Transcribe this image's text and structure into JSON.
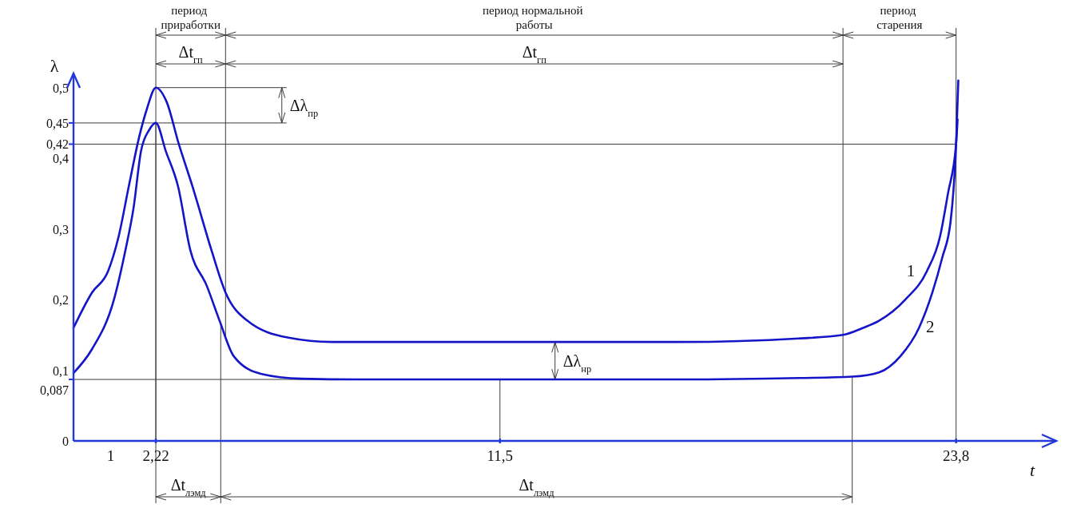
{
  "chart_data": {
    "type": "line",
    "xlabel": "t",
    "ylabel": "λ",
    "xlim": [
      0,
      26.5
    ],
    "xticks": [
      1,
      {
        "value": 2.22,
        "label": "2,22"
      },
      {
        "value": 11.5,
        "label": "11,5"
      },
      {
        "value": 23.8,
        "label": "23,8"
      }
    ],
    "ylim": [
      0,
      0.52
    ],
    "yticks": [
      0,
      {
        "value": 0.1,
        "label": "0,1"
      },
      {
        "value": 0.2,
        "label": "0,2"
      },
      {
        "value": 0.3,
        "label": "0,3"
      },
      {
        "value": 0.4,
        "label": "0,4"
      },
      {
        "value": 0.5,
        "label": "0,5"
      }
    ],
    "series": [
      {
        "name": "1",
        "color": "#1414c8",
        "x": [
          0,
          0.5,
          0.93,
          1.22,
          1.49,
          1.77,
          1.98,
          2.22,
          2.51,
          2.84,
          3.21,
          3.72,
          4.1,
          4.69,
          5.8,
          6.97,
          11.5,
          16.34,
          19.56,
          20.75,
          21.29,
          21.72,
          22.43,
          23.01,
          23.37,
          23.58,
          23.8,
          23.84
        ],
        "values": [
          0.16,
          0.21,
          0.24,
          0.29,
          0.36,
          0.43,
          0.47,
          0.5,
          0.48,
          0.42,
          0.36,
          0.27,
          0.21,
          0.17,
          0.146,
          0.14,
          0.14,
          0.14,
          0.145,
          0.15,
          0.16,
          0.17,
          0.2,
          0.24,
          0.29,
          0.35,
          0.42,
          0.455
        ]
      },
      {
        "name": "2",
        "color": "#1414c8",
        "x": [
          0,
          0.5,
          1.09,
          1.4,
          1.62,
          1.82,
          2.04,
          2.22,
          2.49,
          2.82,
          3.15,
          3.59,
          3.94,
          4.32,
          5.05,
          6.15,
          7.63,
          11.5,
          16.34,
          19.56,
          21,
          21.72,
          22.3,
          22.8,
          23.16,
          23.43,
          23.65,
          23.8,
          23.86
        ],
        "values": [
          0.096,
          0.13,
          0.2,
          0.27,
          0.33,
          0.41,
          0.44,
          0.45,
          0.41,
          0.36,
          0.27,
          0.22,
          0.17,
          0.12,
          0.095,
          0.088,
          0.087,
          0.087,
          0.087,
          0.089,
          0.091,
          0.097,
          0.12,
          0.16,
          0.21,
          0.26,
          0.31,
          0.42,
          0.51
        ]
      }
    ],
    "ref_lines": [
      {
        "axis": "x",
        "value": 2.22
      },
      {
        "axis": "x",
        "value": 4.1
      },
      {
        "axis": "x",
        "value": 20.75
      },
      {
        "axis": "x",
        "value": 23.8
      },
      {
        "axis": "x",
        "value": 3.97
      },
      {
        "axis": "x",
        "value": 21
      },
      {
        "axis": "x",
        "value": 11.5
      },
      {
        "axis": "y",
        "value": 0.087,
        "label": "0,087"
      },
      {
        "axis": "y",
        "value": 0.42,
        "label": "0,42"
      },
      {
        "axis": "y",
        "value": 0.45,
        "label": "0,45"
      },
      {
        "axis": "y",
        "value": 0.5
      }
    ],
    "annotations": [
      "период приработки",
      "период нормальной работы",
      "период старения",
      "Δt$_{гп}$",
      "Δt$_{гп}$",
      "Δt$_{лэмд}$",
      "Δt$_{лэмд}$",
      "Δλ$_{пр}$",
      "Δλ$_{нр}$"
    ]
  }
}
